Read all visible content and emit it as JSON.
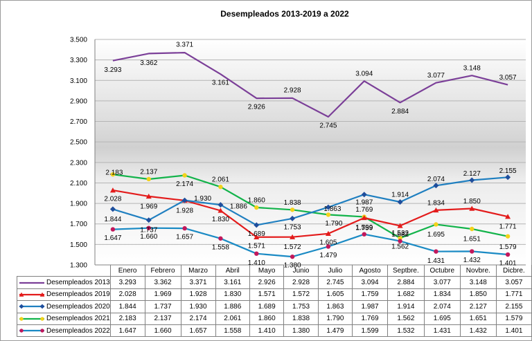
{
  "chart_data": {
    "type": "line",
    "title": "Desempleados 2013-2019 a 2022",
    "xlabel": "",
    "ylabel": "",
    "ylim": [
      1300,
      3500
    ],
    "yticks": [
      "1.300",
      "1.500",
      "1.700",
      "1.900",
      "2.100",
      "2.300",
      "2.500",
      "2.700",
      "2.900",
      "3.100",
      "3.300",
      "3.500"
    ],
    "categories": [
      "Enero",
      "Febrero",
      "Marzo",
      "Abril",
      "Mayo",
      "Junio",
      "Julio",
      "Agosto",
      "Septbre.",
      "Octubre",
      "Novbre.",
      "Dicbre."
    ],
    "series": [
      {
        "name": "Desempleados 2013",
        "color": "#7b3f98",
        "marker": "none",
        "values": [
          3293,
          3362,
          3371,
          3161,
          2926,
          2928,
          2745,
          3094,
          2884,
          3077,
          3148,
          3057
        ],
        "labels": [
          "3.293",
          "3.362",
          "3.371",
          "3.161",
          "2.926",
          "2.928",
          "2.745",
          "3.094",
          "2.884",
          "3.077",
          "3.148",
          "3.057"
        ]
      },
      {
        "name": "Desempleados 2019",
        "color": "#e31b1b",
        "marker": "triangle",
        "values": [
          2028,
          1969,
          1928,
          1830,
          1571,
          1572,
          1605,
          1759,
          1682,
          1834,
          1850,
          1771
        ],
        "labels": [
          "2.028",
          "1.969",
          "1.928",
          "1.830",
          "1.571",
          "1.572",
          "1.605",
          "1.759",
          "1.682",
          "1.834",
          "1.850",
          "1.771"
        ]
      },
      {
        "name": "Desempleados 2020",
        "color": "#1f7fc0",
        "marker": "diamond",
        "marker_color": "#1f4e9c",
        "values": [
          1844,
          1737,
          1930,
          1886,
          1689,
          1753,
          1863,
          1987,
          1914,
          2074,
          2127,
          2155
        ],
        "labels": [
          "1.844",
          "1.737",
          "1.930",
          "1.886",
          "1.689",
          "1.753",
          "1.863",
          "1.987",
          "1.914",
          "2.074",
          "2.127",
          "2.155"
        ]
      },
      {
        "name": "Desempleados 2021",
        "color": "#12b34a",
        "marker": "circle",
        "marker_color": "#f2d21b",
        "values": [
          2183,
          2137,
          2174,
          2061,
          1860,
          1838,
          1790,
          1769,
          1562,
          1695,
          1651,
          1579
        ],
        "labels": [
          "2.183",
          "2.137",
          "2.174",
          "2.061",
          "1.860",
          "1.838",
          "1.790",
          "1.769",
          "1.562",
          "1.695",
          "1.651",
          "1.579"
        ]
      },
      {
        "name": "Desempleados 2022",
        "color": "#1a8ac4",
        "marker": "circle",
        "marker_color": "#c2185b",
        "values": [
          1647,
          1660,
          1657,
          1558,
          1410,
          1380,
          1479,
          1599,
          1532,
          1431,
          1432,
          1401
        ],
        "labels": [
          "1.647",
          "1.660",
          "1.657",
          "1.558",
          "1.410",
          "1.380",
          "1.479",
          "1.599",
          "1.532",
          "1.431",
          "1.432",
          "1.401"
        ]
      }
    ]
  }
}
